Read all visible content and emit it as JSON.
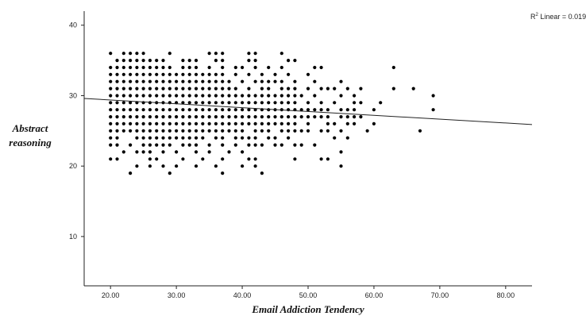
{
  "chart_data": {
    "type": "scatter",
    "xlabel": "Email Addiction Tendency",
    "ylabel_lines": [
      "Abstract",
      "reasoning"
    ],
    "annotation": {
      "base": "R",
      "sup": "2",
      "rest": " Linear = 0.019"
    },
    "xlim": [
      16,
      84
    ],
    "ylim": [
      3,
      42
    ],
    "x_ticks": [
      20,
      30,
      40,
      50,
      60,
      70,
      80
    ],
    "x_tick_labels": [
      "20.00",
      "30.00",
      "40.00",
      "50.00",
      "60.00",
      "70.00",
      "80.00"
    ],
    "y_ticks": [
      10,
      20,
      30,
      40
    ],
    "y_tick_labels": [
      "10",
      "20",
      "30",
      "40"
    ],
    "grid": false,
    "fit_line": {
      "x": [
        16,
        84
      ],
      "y": [
        29.6,
        25.9
      ]
    },
    "points": [
      [
        20,
        36
      ],
      [
        20,
        34
      ],
      [
        20,
        33
      ],
      [
        20,
        32
      ],
      [
        20,
        31
      ],
      [
        20,
        30
      ],
      [
        20,
        29
      ],
      [
        20,
        28
      ],
      [
        20,
        27
      ],
      [
        20,
        26
      ],
      [
        20,
        25
      ],
      [
        20,
        24
      ],
      [
        20,
        23
      ],
      [
        20,
        21
      ],
      [
        21,
        35
      ],
      [
        21,
        34
      ],
      [
        21,
        33
      ],
      [
        21,
        32
      ],
      [
        21,
        31
      ],
      [
        21,
        30
      ],
      [
        21,
        29
      ],
      [
        21,
        28
      ],
      [
        21,
        27
      ],
      [
        21,
        26
      ],
      [
        21,
        25
      ],
      [
        21,
        24
      ],
      [
        21,
        23
      ],
      [
        21,
        21
      ],
      [
        22,
        36
      ],
      [
        22,
        35
      ],
      [
        22,
        34
      ],
      [
        22,
        33
      ],
      [
        22,
        32
      ],
      [
        22,
        31
      ],
      [
        22,
        30
      ],
      [
        22,
        29
      ],
      [
        22,
        28
      ],
      [
        22,
        27
      ],
      [
        22,
        26
      ],
      [
        22,
        25
      ],
      [
        22,
        22
      ],
      [
        23,
        36
      ],
      [
        23,
        35
      ],
      [
        23,
        34
      ],
      [
        23,
        33
      ],
      [
        23,
        32
      ],
      [
        23,
        31
      ],
      [
        23,
        30
      ],
      [
        23,
        29
      ],
      [
        23,
        28
      ],
      [
        23,
        27
      ],
      [
        23,
        26
      ],
      [
        23,
        25
      ],
      [
        23,
        23
      ],
      [
        23,
        19
      ],
      [
        24,
        36
      ],
      [
        24,
        35
      ],
      [
        24,
        34
      ],
      [
        24,
        33
      ],
      [
        24,
        32
      ],
      [
        24,
        31
      ],
      [
        24,
        30
      ],
      [
        24,
        29
      ],
      [
        24,
        28
      ],
      [
        24,
        27
      ],
      [
        24,
        26
      ],
      [
        24,
        25
      ],
      [
        24,
        24
      ],
      [
        24,
        22
      ],
      [
        24,
        20
      ],
      [
        25,
        36
      ],
      [
        25,
        35
      ],
      [
        25,
        34
      ],
      [
        25,
        33
      ],
      [
        25,
        32
      ],
      [
        25,
        31
      ],
      [
        25,
        30
      ],
      [
        25,
        29
      ],
      [
        25,
        28
      ],
      [
        25,
        27
      ],
      [
        25,
        26
      ],
      [
        25,
        25
      ],
      [
        25,
        24
      ],
      [
        25,
        23
      ],
      [
        25,
        22
      ],
      [
        26,
        35
      ],
      [
        26,
        34
      ],
      [
        26,
        33
      ],
      [
        26,
        32
      ],
      [
        26,
        31
      ],
      [
        26,
        30
      ],
      [
        26,
        29
      ],
      [
        26,
        28
      ],
      [
        26,
        27
      ],
      [
        26,
        26
      ],
      [
        26,
        25
      ],
      [
        26,
        24
      ],
      [
        26,
        23
      ],
      [
        26,
        22
      ],
      [
        26,
        21
      ],
      [
        26,
        20
      ],
      [
        27,
        35
      ],
      [
        27,
        34
      ],
      [
        27,
        33
      ],
      [
        27,
        32
      ],
      [
        27,
        31
      ],
      [
        27,
        30
      ],
      [
        27,
        29
      ],
      [
        27,
        28
      ],
      [
        27,
        27
      ],
      [
        27,
        26
      ],
      [
        27,
        25
      ],
      [
        27,
        24
      ],
      [
        27,
        23
      ],
      [
        27,
        21
      ],
      [
        28,
        35
      ],
      [
        28,
        34
      ],
      [
        28,
        33
      ],
      [
        28,
        32
      ],
      [
        28,
        31
      ],
      [
        28,
        30
      ],
      [
        28,
        29
      ],
      [
        28,
        28
      ],
      [
        28,
        27
      ],
      [
        28,
        26
      ],
      [
        28,
        25
      ],
      [
        28,
        24
      ],
      [
        28,
        23
      ],
      [
        28,
        22
      ],
      [
        28,
        20
      ],
      [
        29,
        36
      ],
      [
        29,
        34
      ],
      [
        29,
        33
      ],
      [
        29,
        32
      ],
      [
        29,
        31
      ],
      [
        29,
        30
      ],
      [
        29,
        29
      ],
      [
        29,
        28
      ],
      [
        29,
        27
      ],
      [
        29,
        26
      ],
      [
        29,
        25
      ],
      [
        29,
        24
      ],
      [
        29,
        23
      ],
      [
        29,
        19
      ],
      [
        30,
        33
      ],
      [
        30,
        32
      ],
      [
        30,
        31
      ],
      [
        30,
        30
      ],
      [
        30,
        29
      ],
      [
        30,
        28
      ],
      [
        30,
        27
      ],
      [
        30,
        26
      ],
      [
        30,
        25
      ],
      [
        30,
        24
      ],
      [
        30,
        22
      ],
      [
        30,
        20
      ],
      [
        31,
        35
      ],
      [
        31,
        34
      ],
      [
        31,
        33
      ],
      [
        31,
        32
      ],
      [
        31,
        31
      ],
      [
        31,
        30
      ],
      [
        31,
        29
      ],
      [
        31,
        28
      ],
      [
        31,
        27
      ],
      [
        31,
        26
      ],
      [
        31,
        25
      ],
      [
        31,
        24
      ],
      [
        31,
        23
      ],
      [
        31,
        21
      ],
      [
        32,
        35
      ],
      [
        32,
        34
      ],
      [
        32,
        33
      ],
      [
        32,
        32
      ],
      [
        32,
        31
      ],
      [
        32,
        30
      ],
      [
        32,
        29
      ],
      [
        32,
        28
      ],
      [
        32,
        27
      ],
      [
        32,
        26
      ],
      [
        32,
        25
      ],
      [
        32,
        24
      ],
      [
        32,
        23
      ],
      [
        33,
        35
      ],
      [
        33,
        34
      ],
      [
        33,
        33
      ],
      [
        33,
        32
      ],
      [
        33,
        31
      ],
      [
        33,
        30
      ],
      [
        33,
        29
      ],
      [
        33,
        28
      ],
      [
        33,
        27
      ],
      [
        33,
        26
      ],
      [
        33,
        25
      ],
      [
        33,
        24
      ],
      [
        33,
        23
      ],
      [
        33,
        22
      ],
      [
        33,
        20
      ],
      [
        34,
        33
      ],
      [
        34,
        32
      ],
      [
        34,
        31
      ],
      [
        34,
        30
      ],
      [
        34,
        29
      ],
      [
        34,
        28
      ],
      [
        34,
        27
      ],
      [
        34,
        26
      ],
      [
        34,
        25
      ],
      [
        34,
        24
      ],
      [
        34,
        21
      ],
      [
        35,
        36
      ],
      [
        35,
        34
      ],
      [
        35,
        33
      ],
      [
        35,
        32
      ],
      [
        35,
        31
      ],
      [
        35,
        30
      ],
      [
        35,
        29
      ],
      [
        35,
        28
      ],
      [
        35,
        27
      ],
      [
        35,
        26
      ],
      [
        35,
        25
      ],
      [
        35,
        23
      ],
      [
        35,
        22
      ],
      [
        36,
        36
      ],
      [
        36,
        35
      ],
      [
        36,
        33
      ],
      [
        36,
        32
      ],
      [
        36,
        31
      ],
      [
        36,
        30
      ],
      [
        36,
        29
      ],
      [
        36,
        28
      ],
      [
        36,
        27
      ],
      [
        36,
        26
      ],
      [
        36,
        25
      ],
      [
        36,
        24
      ],
      [
        36,
        20
      ],
      [
        37,
        36
      ],
      [
        37,
        35
      ],
      [
        37,
        34
      ],
      [
        37,
        33
      ],
      [
        37,
        32
      ],
      [
        37,
        31
      ],
      [
        37,
        30
      ],
      [
        37,
        29
      ],
      [
        37,
        28
      ],
      [
        37,
        27
      ],
      [
        37,
        26
      ],
      [
        37,
        25
      ],
      [
        37,
        24
      ],
      [
        37,
        23
      ],
      [
        37,
        21
      ],
      [
        37,
        19
      ],
      [
        38,
        32
      ],
      [
        38,
        31
      ],
      [
        38,
        30
      ],
      [
        38,
        29
      ],
      [
        38,
        28
      ],
      [
        38,
        27
      ],
      [
        38,
        26
      ],
      [
        38,
        25
      ],
      [
        38,
        22
      ],
      [
        39,
        34
      ],
      [
        39,
        33
      ],
      [
        39,
        31
      ],
      [
        39,
        30
      ],
      [
        39,
        29
      ],
      [
        39,
        28
      ],
      [
        39,
        27
      ],
      [
        39,
        26
      ],
      [
        39,
        25
      ],
      [
        39,
        24
      ],
      [
        39,
        23
      ],
      [
        40,
        34
      ],
      [
        40,
        32
      ],
      [
        40,
        30
      ],
      [
        40,
        29
      ],
      [
        40,
        28
      ],
      [
        40,
        27
      ],
      [
        40,
        26
      ],
      [
        40,
        25
      ],
      [
        40,
        24
      ],
      [
        40,
        22
      ],
      [
        40,
        20
      ],
      [
        41,
        36
      ],
      [
        41,
        35
      ],
      [
        41,
        33
      ],
      [
        41,
        31
      ],
      [
        41,
        30
      ],
      [
        41,
        29
      ],
      [
        41,
        28
      ],
      [
        41,
        27
      ],
      [
        41,
        26
      ],
      [
        41,
        24
      ],
      [
        41,
        23
      ],
      [
        41,
        21
      ],
      [
        42,
        36
      ],
      [
        42,
        35
      ],
      [
        42,
        34
      ],
      [
        42,
        32
      ],
      [
        42,
        30
      ],
      [
        42,
        29
      ],
      [
        42,
        28
      ],
      [
        42,
        27
      ],
      [
        42,
        26
      ],
      [
        42,
        25
      ],
      [
        42,
        24
      ],
      [
        42,
        23
      ],
      [
        42,
        21
      ],
      [
        42,
        20
      ],
      [
        43,
        33
      ],
      [
        43,
        32
      ],
      [
        43,
        31
      ],
      [
        43,
        30
      ],
      [
        43,
        29
      ],
      [
        43,
        28
      ],
      [
        43,
        27
      ],
      [
        43,
        26
      ],
      [
        43,
        25
      ],
      [
        43,
        23
      ],
      [
        43,
        19
      ],
      [
        44,
        34
      ],
      [
        44,
        32
      ],
      [
        44,
        31
      ],
      [
        44,
        30
      ],
      [
        44,
        29
      ],
      [
        44,
        28
      ],
      [
        44,
        27
      ],
      [
        44,
        26
      ],
      [
        44,
        25
      ],
      [
        44,
        24
      ],
      [
        45,
        33
      ],
      [
        45,
        32
      ],
      [
        45,
        30
      ],
      [
        45,
        29
      ],
      [
        45,
        28
      ],
      [
        45,
        27
      ],
      [
        45,
        26
      ],
      [
        45,
        24
      ],
      [
        45,
        23
      ],
      [
        46,
        36
      ],
      [
        46,
        34
      ],
      [
        46,
        32
      ],
      [
        46,
        31
      ],
      [
        46,
        30
      ],
      [
        46,
        29
      ],
      [
        46,
        28
      ],
      [
        46,
        27
      ],
      [
        46,
        26
      ],
      [
        46,
        25
      ],
      [
        46,
        23
      ],
      [
        47,
        35
      ],
      [
        47,
        33
      ],
      [
        47,
        31
      ],
      [
        47,
        30
      ],
      [
        47,
        29
      ],
      [
        47,
        28
      ],
      [
        47,
        27
      ],
      [
        47,
        26
      ],
      [
        47,
        25
      ],
      [
        47,
        24
      ],
      [
        48,
        35
      ],
      [
        48,
        32
      ],
      [
        48,
        31
      ],
      [
        48,
        30
      ],
      [
        48,
        29
      ],
      [
        48,
        28
      ],
      [
        48,
        27
      ],
      [
        48,
        26
      ],
      [
        48,
        25
      ],
      [
        48,
        23
      ],
      [
        48,
        21
      ],
      [
        49,
        30
      ],
      [
        49,
        28
      ],
      [
        49,
        27
      ],
      [
        49,
        25
      ],
      [
        49,
        23
      ],
      [
        50,
        33
      ],
      [
        50,
        31
      ],
      [
        50,
        29
      ],
      [
        50,
        28
      ],
      [
        50,
        27
      ],
      [
        50,
        26
      ],
      [
        50,
        25
      ],
      [
        51,
        34
      ],
      [
        51,
        32
      ],
      [
        51,
        30
      ],
      [
        51,
        28
      ],
      [
        51,
        27
      ],
      [
        51,
        23
      ],
      [
        52,
        34
      ],
      [
        52,
        31
      ],
      [
        52,
        29
      ],
      [
        52,
        28
      ],
      [
        52,
        27
      ],
      [
        52,
        25
      ],
      [
        52,
        21
      ],
      [
        53,
        31
      ],
      [
        53,
        28
      ],
      [
        53,
        27
      ],
      [
        53,
        26
      ],
      [
        53,
        25
      ],
      [
        53,
        21
      ],
      [
        54,
        31
      ],
      [
        54,
        29
      ],
      [
        54,
        26
      ],
      [
        54,
        24
      ],
      [
        55,
        32
      ],
      [
        55,
        30
      ],
      [
        55,
        28
      ],
      [
        55,
        27
      ],
      [
        55,
        25
      ],
      [
        55,
        22
      ],
      [
        55,
        20
      ],
      [
        56,
        31
      ],
      [
        56,
        28
      ],
      [
        56,
        27
      ],
      [
        56,
        26
      ],
      [
        56,
        24
      ],
      [
        57,
        30
      ],
      [
        57,
        29
      ],
      [
        57,
        28
      ],
      [
        57,
        27
      ],
      [
        57,
        26
      ],
      [
        58,
        31
      ],
      [
        58,
        29
      ],
      [
        58,
        27
      ],
      [
        59,
        25
      ],
      [
        60,
        28
      ],
      [
        60,
        26
      ],
      [
        61,
        29
      ],
      [
        63,
        34
      ],
      [
        63,
        31
      ],
      [
        66,
        31
      ],
      [
        67,
        25
      ],
      [
        69,
        30
      ],
      [
        69,
        28
      ]
    ]
  }
}
